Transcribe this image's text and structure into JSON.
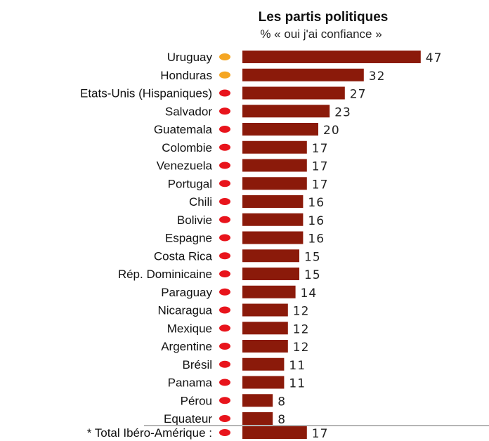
{
  "chart_data": {
    "type": "bar",
    "orientation": "horizontal",
    "title": "Les partis politiques",
    "subtitle": "% « oui j'ai confiance »",
    "categories": [
      "Uruguay",
      "Honduras",
      "Etats-Unis (Hispaniques)",
      "Salvador",
      "Guatemala",
      "Colombie",
      "Venezuela",
      "Portugal",
      "Chili",
      "Bolivie",
      "Espagne",
      "Costa Rica",
      "Rép. Dominicaine",
      "Paraguay",
      "Nicaragua",
      "Mexique",
      "Argentine",
      "Brésil",
      "Panama",
      "Pérou",
      "Equateur"
    ],
    "values": [
      47,
      32,
      27,
      23,
      20,
      17,
      17,
      17,
      16,
      16,
      16,
      15,
      15,
      14,
      12,
      12,
      12,
      11,
      11,
      8,
      8
    ],
    "dot_status": [
      "orange",
      "orange",
      "red",
      "red",
      "red",
      "red",
      "red",
      "red",
      "red",
      "red",
      "red",
      "red",
      "red",
      "red",
      "red",
      "red",
      "red",
      "red",
      "red",
      "red",
      "red"
    ],
    "total": {
      "label": "* Total Ibéro-Amérique :",
      "value": 17,
      "dot_status": "red"
    },
    "colors": {
      "bar": "#8b1a0a",
      "dot_red": "#e8141c",
      "dot_orange": "#f5a623",
      "separator": "#b5b5b5"
    },
    "grid": false,
    "legend": "none"
  }
}
